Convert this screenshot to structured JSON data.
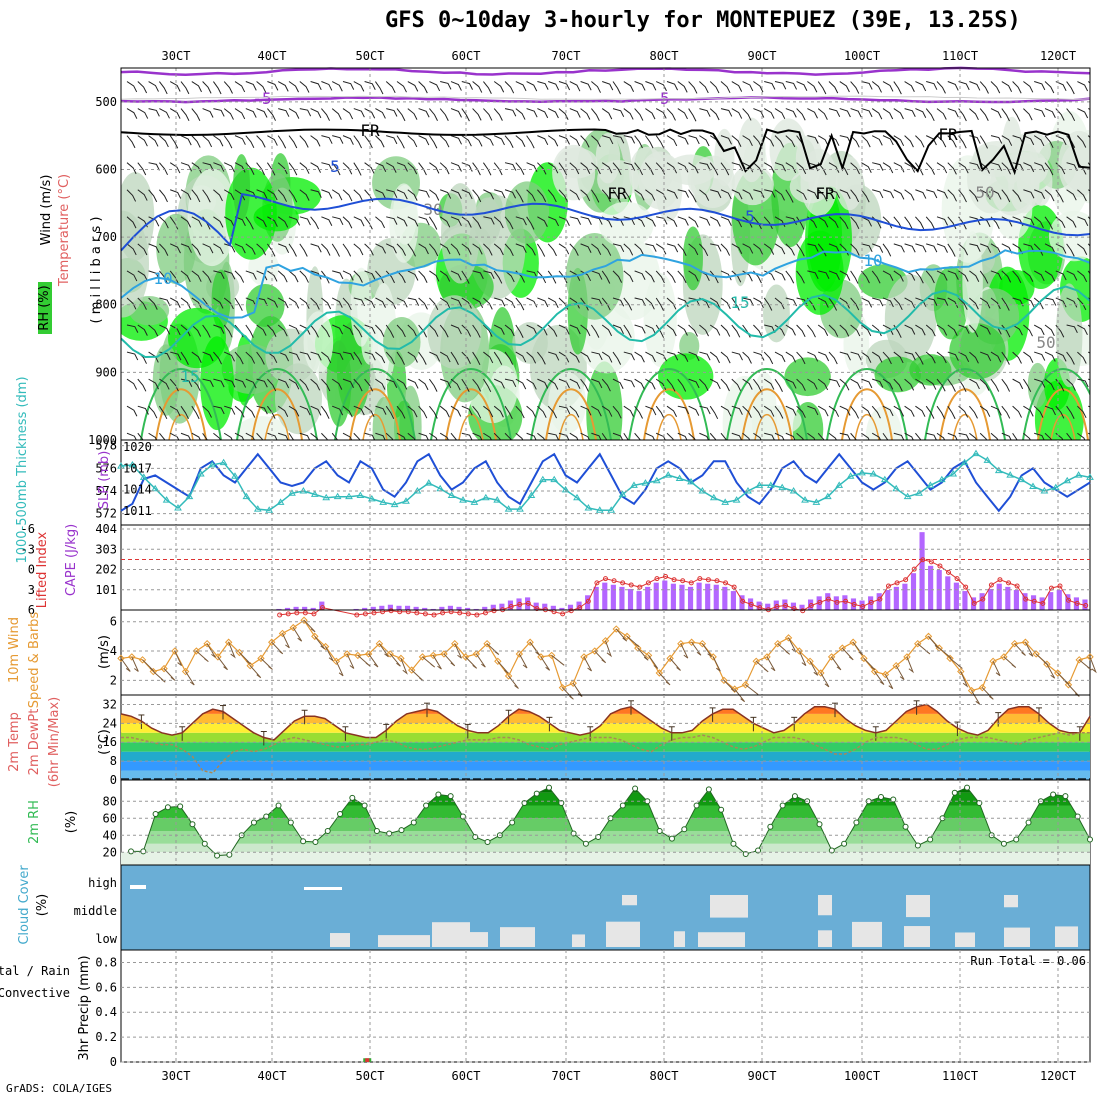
{
  "title": "GFS 0~10day 3-hourly for MONTEPUEZ (39E, 13.25S)",
  "credit": "GrADS: COLA/IGES",
  "colors": {
    "purple": "#9933cc",
    "blue": "#1f4fd6",
    "lightblue": "#2fa3e0",
    "teal": "#22bbaa",
    "green": "#33bb55",
    "orange": "#e69a33",
    "red": "#dd3333",
    "cloudbg": "#6aaed6",
    "cyan": "#33bbbb"
  },
  "chart_data": [
    {
      "type": "heatmap",
      "name": "upper-air",
      "xlabels": [
        "30CT",
        "40CT",
        "50CT",
        "60CT",
        "70CT",
        "80CT",
        "90CT",
        "100CT",
        "110CT",
        "120CT"
      ],
      "ylabel_parts": [
        "Wind (m/s)",
        "Temperature (°C)",
        "RH (%)"
      ],
      "ylabel_right": "( m i l l i b a r s )",
      "yticks": [
        "500",
        "600",
        "700",
        "800",
        "900",
        "1000"
      ],
      "ylim": [
        1000,
        450
      ],
      "contour_labels": [
        "-5",
        "-5",
        "FR",
        "FR",
        "FR",
        "FR",
        "5",
        "5",
        "10",
        "10",
        "15",
        "15",
        "30",
        "50",
        "50"
      ]
    },
    {
      "type": "line",
      "name": "thickness-slp",
      "ylabel_left": "1000-500mb Thickness (dm)",
      "ylabel_right": "SLP (mb)",
      "yticks_left": [
        "578",
        "576",
        "574",
        "572"
      ],
      "yticks_right": [
        "1020",
        "1017",
        "1014",
        "1011"
      ],
      "series": [
        {
          "name": "SLP",
          "values": [
            1011,
            1012,
            1015.5,
            1016,
            1015,
            1014,
            1013,
            1017,
            1018,
            1016,
            1015,
            1017,
            1019,
            1017,
            1015,
            1014.5,
            1015,
            1017,
            1018,
            1016,
            1015,
            1018,
            1017,
            1014,
            1013,
            1015,
            1018,
            1019,
            1016,
            1014,
            1015,
            1017,
            1018,
            1015,
            1013,
            1012,
            1015,
            1018,
            1019,
            1016,
            1015,
            1017,
            1019,
            1016,
            1013,
            1012,
            1014,
            1017,
            1018,
            1017,
            1015,
            1016,
            1018,
            1018,
            1015,
            1013,
            1012,
            1014,
            1017,
            1018,
            1016,
            1015,
            1017,
            1019,
            1017,
            1015,
            1014,
            1015,
            1017,
            1018,
            1016,
            1014,
            1015,
            1017,
            1018,
            1015,
            1013,
            1011,
            1013,
            1016,
            1017,
            1015,
            1014,
            1013,
            1014,
            1015
          ]
        },
        {
          "name": "Thickness",
          "values": [
            576.2,
            576.3,
            575.2,
            574.2,
            573.2,
            572.5,
            573.5,
            575.5,
            576.3,
            576.5,
            575.3,
            573.5,
            572.4,
            572.3,
            573.0,
            573.8,
            574.0,
            573.7,
            573.4,
            573.5,
            573.5,
            573.6,
            573.3,
            573.0,
            572.8,
            573.1,
            574.0,
            574.7,
            574.2,
            573.6,
            573.2,
            573.0,
            573.4,
            573.2,
            572.4,
            572.4,
            573.6,
            575.0,
            575.0,
            574.1,
            573.4,
            572.5,
            572.3,
            572.3,
            573.7,
            574.5,
            574.7,
            574.9,
            575.4,
            575.1,
            574.8,
            574.0,
            573.4,
            573.0,
            573.2,
            574.0,
            574.5,
            574.5,
            574.3,
            574.0,
            573.2,
            573.0,
            573.5,
            574.5,
            575.3,
            575.6,
            575.5,
            575.0,
            574.2,
            573.5,
            573.8,
            574.5,
            575.0,
            575.5,
            576.5,
            577.3,
            576.7,
            575.8,
            575.4,
            575.0,
            574.4,
            574.0,
            574.3,
            574.9,
            575.4,
            575.2
          ]
        }
      ]
    },
    {
      "type": "bar",
      "name": "cape-li",
      "ylabel_left": "Lifted Index",
      "ylabel_right": "CAPE (J/kg)",
      "yticks_left": [
        "-6",
        "-3",
        "0",
        "3",
        "6"
      ],
      "yticks_right": [
        "404",
        "303",
        "202",
        "101"
      ],
      "cape_values": [
        0,
        0,
        0,
        0,
        0,
        0,
        0,
        0,
        0,
        0,
        0,
        0,
        0,
        0,
        0,
        0,
        0,
        0,
        5,
        10,
        15,
        15,
        10,
        40,
        0,
        0,
        0,
        5,
        10,
        15,
        20,
        25,
        20,
        20,
        15,
        10,
        5,
        15,
        20,
        15,
        10,
        5,
        15,
        25,
        30,
        45,
        55,
        60,
        35,
        30,
        20,
        10,
        25,
        40,
        70,
        110,
        130,
        120,
        110,
        100,
        90,
        110,
        130,
        140,
        125,
        120,
        110,
        130,
        125,
        120,
        110,
        90,
        70,
        55,
        40,
        30,
        45,
        50,
        35,
        25,
        50,
        65,
        80,
        65,
        70,
        55,
        45,
        65,
        80,
        95,
        110,
        125,
        175,
        370,
        210,
        190,
        160,
        130,
        90,
        60,
        80,
        100,
        125,
        110,
        95,
        80,
        70,
        60,
        85,
        95,
        75,
        60,
        50
      ]
    },
    {
      "type": "line",
      "name": "10m-wind",
      "ylabel_left": "10m Wind",
      "ylabel_mid": "Speed & Barbs",
      "yunit": "(m/s)",
      "yticks": [
        "6",
        "4",
        "2"
      ],
      "values": [
        3.5,
        3.6,
        3.4,
        2.6,
        2.8,
        4.0,
        2.6,
        4.0,
        4.5,
        3.6,
        4.6,
        3.9,
        3.0,
        3.5,
        4.6,
        5.2,
        5.6,
        6.1,
        5.0,
        4.3,
        3.3,
        3.8,
        3.7,
        3.8,
        4.5,
        3.8,
        3.5,
        2.7,
        3.6,
        3.7,
        3.8,
        4.5,
        3.6,
        3.8,
        4.5,
        3.3,
        2.3,
        3.8,
        4.6,
        3.6,
        3.7,
        1.5,
        1.8,
        3.6,
        4.0,
        4.7,
        5.5,
        5.0,
        4.2,
        3.7,
        2.5,
        3.5,
        4.5,
        4.6,
        4.5,
        3.6,
        2.0,
        1.4,
        1.7,
        3.3,
        3.6,
        4.5,
        4.9,
        4.0,
        3.3,
        2.5,
        3.6,
        4.2,
        4.6,
        3.5,
        2.6,
        2.4,
        3.0,
        3.6,
        4.5,
        5.0,
        4.2,
        3.5,
        2.6,
        1.3,
        1.5,
        3.3,
        3.6,
        4.5,
        4.6,
        3.8,
        3.1,
        2.5,
        1.7,
        3.4,
        3.6
      ]
    },
    {
      "type": "area",
      "name": "2m-temp",
      "ylabel": [
        "2m Temp",
        "2m DewPt",
        "(6hr Min/Max)"
      ],
      "yunit": "(°C)",
      "yticks": [
        "32",
        "24",
        "16",
        "8",
        "0"
      ],
      "temp": [
        28,
        27,
        25,
        22,
        20,
        19,
        20,
        24,
        28,
        30,
        29,
        26,
        23,
        20,
        18,
        17,
        21,
        25,
        27,
        27,
        26,
        23,
        20,
        19,
        18,
        18,
        21,
        25,
        28,
        29,
        30,
        29,
        26,
        23,
        21,
        20,
        20,
        23,
        27,
        30,
        29,
        27,
        24,
        21,
        20,
        19,
        20,
        23,
        28,
        30,
        31,
        28,
        25,
        22,
        20,
        20,
        21,
        25,
        28,
        30,
        30,
        27,
        24,
        22,
        20,
        21,
        24,
        28,
        31,
        31,
        30,
        26,
        23,
        21,
        20,
        21,
        25,
        29,
        31,
        32,
        29,
        25,
        22,
        20,
        19,
        21,
        26,
        30,
        31,
        31,
        28,
        24,
        21,
        20,
        20,
        27
      ],
      "dew": [
        18,
        18,
        17,
        16,
        15,
        15,
        13,
        10,
        4,
        3,
        8,
        12,
        13,
        12,
        13,
        15,
        17,
        18,
        17,
        16,
        15,
        14,
        14,
        15,
        15,
        16,
        17,
        16,
        14,
        13,
        13,
        14,
        15,
        16,
        17,
        17,
        17,
        18,
        18,
        17,
        15,
        14,
        13,
        15,
        16,
        17,
        18,
        18,
        18,
        17,
        15,
        13,
        12,
        15,
        17,
        18,
        18,
        19,
        18,
        16,
        14,
        13,
        14,
        16,
        18,
        18,
        18,
        17,
        15,
        13,
        11,
        11,
        13,
        16,
        18,
        18,
        18,
        17,
        15,
        13,
        13,
        15,
        17,
        18,
        18,
        18,
        17,
        16,
        15,
        17,
        18,
        19,
        20,
        19,
        20,
        20
      ]
    },
    {
      "type": "area",
      "name": "2m-rh",
      "ylabel": "2m RH",
      "yunit": "(%)",
      "yticks": [
        "80",
        "60",
        "40",
        "20"
      ],
      "values": [
        21,
        21,
        65,
        73,
        74,
        53,
        30,
        16,
        17,
        40,
        55,
        62,
        75,
        55,
        33,
        32,
        45,
        65,
        84,
        75,
        45,
        42,
        46,
        55,
        75,
        88,
        86,
        62,
        38,
        32,
        40,
        55,
        78,
        89,
        96,
        78,
        42,
        30,
        38,
        60,
        75,
        95,
        80,
        45,
        36,
        47,
        75,
        94,
        70,
        30,
        18,
        22,
        50,
        75,
        86,
        80,
        53,
        22,
        30,
        55,
        80,
        85,
        82,
        50,
        28,
        35,
        60,
        90,
        96,
        78,
        40,
        30,
        35,
        55,
        80,
        88,
        86,
        62,
        35
      ]
    },
    {
      "type": "bar",
      "name": "cloud-cover",
      "ylabel": "Cloud Cover",
      "yunit": "(%)",
      "yticks": [
        "high",
        "middle",
        "low"
      ]
    },
    {
      "type": "bar",
      "name": "precip",
      "ylabel_a": "Total / Rain",
      "ylabel_b": "Convective",
      "ylabel_c": "3hr Precip (mm)",
      "yticks": [
        "0.8",
        "0.6",
        "0.4",
        "0.2",
        "0"
      ],
      "extra_tick": "0.8",
      "run_total": "Run Total = 0.06",
      "bars": [
        {
          "x": 49,
          "total": 0.03,
          "convective": 0.03
        }
      ]
    }
  ]
}
